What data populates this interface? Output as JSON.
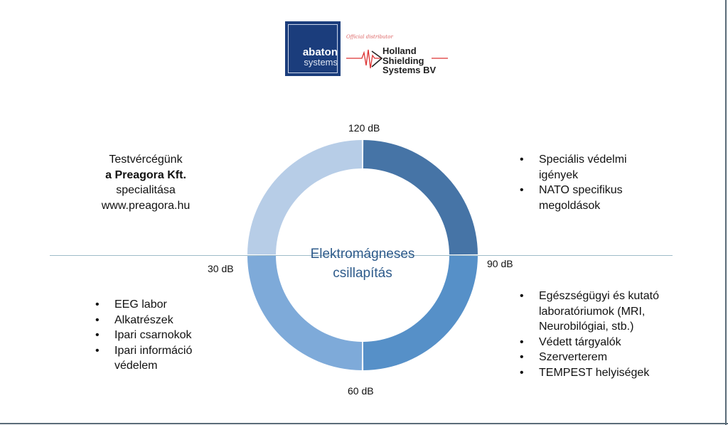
{
  "logo": {
    "line1": "abaton",
    "line2": "systems",
    "distributor": "Official distributor",
    "partner": [
      "Holland",
      "Shielding",
      "Systems BV"
    ],
    "color": "#1b3d7c"
  },
  "diagram": {
    "center_title": [
      "Elektromágneses",
      "csillapítás"
    ],
    "labels": {
      "top": "120 dB",
      "right": "90 dB",
      "bottom": "60 dB",
      "left": "30 dB"
    },
    "segments": [
      {
        "quadrant": "top-right",
        "color": "#4674a6"
      },
      {
        "quadrant": "bottom-right",
        "color": "#5690c8"
      },
      {
        "quadrant": "bottom-left",
        "color": "#7eaad9"
      },
      {
        "quadrant": "top-left",
        "color": "#b7cde7"
      }
    ]
  },
  "top_left": {
    "line1": "Testvércégünk",
    "line2": "a Preagora Kft.",
    "line3": "specialitása",
    "line4": "www.preagora.hu"
  },
  "top_right": [
    "Speciális védelmi igények",
    "NATO specifikus megoldások"
  ],
  "bottom_left": [
    "EEG labor",
    "Alkatrészek",
    "Ipari csarnokok",
    "Ipari információ védelem"
  ],
  "bottom_right": [
    "Egészségügyi és kutató laboratóriumok (MRI, Neurobilógiai, stb.)",
    "Védett tárgyalók",
    "Szerverterem",
    "TEMPEST helyiségek"
  ]
}
